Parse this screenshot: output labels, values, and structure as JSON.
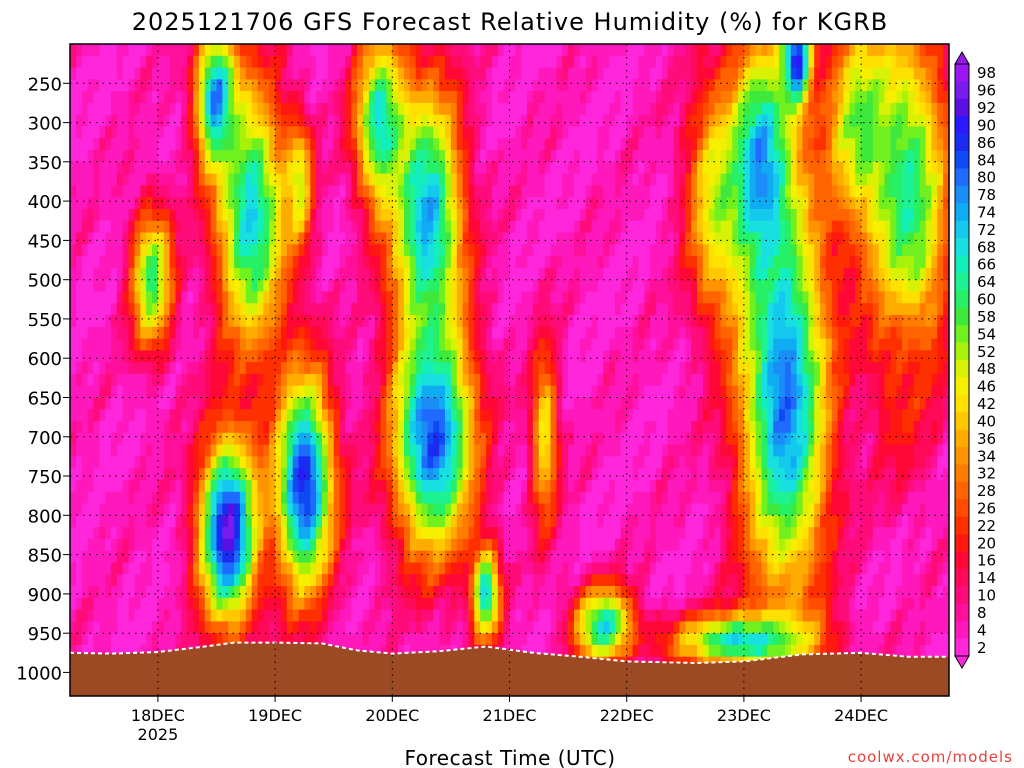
{
  "chart_data": {
    "type": "heatmap",
    "title": "2025121706 GFS Forecast Relative Humidity (%) for KGRB",
    "xlabel": "Forecast Time (UTC)",
    "ylabel": "",
    "credit": "coolwx.com/models",
    "x_ticks": [
      {
        "label": "18DEC",
        "sub": "2025",
        "day": 18.0
      },
      {
        "label": "19DEC",
        "sub": "",
        "day": 19.0
      },
      {
        "label": "20DEC",
        "sub": "",
        "day": 20.0
      },
      {
        "label": "21DEC",
        "sub": "",
        "day": 21.0
      },
      {
        "label": "22DEC",
        "sub": "",
        "day": 22.0
      },
      {
        "label": "23DEC",
        "sub": "",
        "day": 23.0
      },
      {
        "label": "24DEC",
        "sub": "",
        "day": 24.0
      }
    ],
    "xlim": [
      17.25,
      24.75
    ],
    "y_ticks": [
      250,
      300,
      350,
      400,
      450,
      500,
      550,
      600,
      650,
      700,
      750,
      800,
      850,
      900,
      950,
      1000
    ],
    "ylim": [
      200,
      1030
    ],
    "colorbar": {
      "labels": [
        98,
        96,
        92,
        90,
        86,
        84,
        80,
        78,
        74,
        72,
        68,
        66,
        64,
        60,
        58,
        54,
        52,
        48,
        46,
        42,
        40,
        36,
        34,
        32,
        28,
        26,
        22,
        20,
        16,
        14,
        10,
        8,
        4,
        2
      ],
      "colors": [
        "#9b17f2",
        "#7a1cf0",
        "#5a10e0",
        "#2a18ff",
        "#1b2bf2",
        "#0f48f5",
        "#1f6bff",
        "#1a8ef6",
        "#10acf3",
        "#14c8ee",
        "#18e0e0",
        "#12eebc",
        "#1ef292",
        "#26f066",
        "#3ee83c",
        "#70f01e",
        "#a8f20a",
        "#d8f206",
        "#f6f000",
        "#ffe000",
        "#ffc800",
        "#ffac00",
        "#ff9400",
        "#ff7c00",
        "#ff6400",
        "#ff4c00",
        "#ff3000",
        "#ff1810",
        "#ff0838",
        "#ff0a5a",
        "#ff0c7a",
        "#ff0f9a",
        "#ff18bc",
        "#ff26dc"
      ]
    },
    "surface_pressure": [
      {
        "day": 17.25,
        "hpa": 975
      },
      {
        "day": 17.6,
        "hpa": 976
      },
      {
        "day": 18.0,
        "hpa": 974
      },
      {
        "day": 18.4,
        "hpa": 967
      },
      {
        "day": 18.65,
        "hpa": 962
      },
      {
        "day": 19.0,
        "hpa": 962
      },
      {
        "day": 19.4,
        "hpa": 963
      },
      {
        "day": 19.7,
        "hpa": 972
      },
      {
        "day": 20.0,
        "hpa": 976
      },
      {
        "day": 20.4,
        "hpa": 973
      },
      {
        "day": 20.8,
        "hpa": 967
      },
      {
        "day": 21.2,
        "hpa": 975
      },
      {
        "day": 21.6,
        "hpa": 980
      },
      {
        "day": 22.0,
        "hpa": 986
      },
      {
        "day": 22.6,
        "hpa": 988
      },
      {
        "day": 23.0,
        "hpa": 986
      },
      {
        "day": 23.5,
        "hpa": 977
      },
      {
        "day": 24.0,
        "hpa": 975
      },
      {
        "day": 24.4,
        "hpa": 980
      },
      {
        "day": 24.75,
        "hpa": 980
      }
    ],
    "humidity_field": [
      {
        "day": 18.5,
        "hpa": 270,
        "sd": 0.18,
        "sp": 90,
        "rh": 82
      },
      {
        "day": 18.8,
        "hpa": 420,
        "sd": 0.3,
        "sp": 170,
        "rh": 72
      },
      {
        "day": 18.6,
        "hpa": 820,
        "sd": 0.25,
        "sp": 120,
        "rh": 96
      },
      {
        "day": 17.95,
        "hpa": 500,
        "sd": 0.18,
        "sp": 90,
        "rh": 62
      },
      {
        "day": 19.25,
        "hpa": 760,
        "sd": 0.25,
        "sp": 140,
        "rh": 90
      },
      {
        "day": 19.2,
        "hpa": 380,
        "sd": 0.12,
        "sp": 80,
        "rh": 52
      },
      {
        "day": 19.9,
        "hpa": 300,
        "sd": 0.22,
        "sp": 110,
        "rh": 70
      },
      {
        "day": 20.3,
        "hpa": 420,
        "sd": 0.3,
        "sp": 170,
        "rh": 76
      },
      {
        "day": 20.35,
        "hpa": 700,
        "sd": 0.35,
        "sp": 150,
        "rh": 86
      },
      {
        "day": 20.8,
        "hpa": 900,
        "sd": 0.12,
        "sp": 60,
        "rh": 72
      },
      {
        "day": 21.3,
        "hpa": 700,
        "sd": 0.12,
        "sp": 120,
        "rh": 46
      },
      {
        "day": 21.8,
        "hpa": 940,
        "sd": 0.25,
        "sp": 50,
        "rh": 70
      },
      {
        "day": 22.75,
        "hpa": 400,
        "sd": 0.25,
        "sp": 150,
        "rh": 48
      },
      {
        "day": 23.15,
        "hpa": 360,
        "sd": 0.28,
        "sp": 160,
        "rh": 80
      },
      {
        "day": 23.35,
        "hpa": 650,
        "sd": 0.38,
        "sp": 260,
        "rh": 82
      },
      {
        "day": 23.45,
        "hpa": 220,
        "sd": 0.12,
        "sp": 60,
        "rh": 94
      },
      {
        "day": 24.0,
        "hpa": 300,
        "sd": 0.3,
        "sp": 130,
        "rh": 58
      },
      {
        "day": 24.4,
        "hpa": 400,
        "sd": 0.35,
        "sp": 220,
        "rh": 66
      },
      {
        "day": 24.35,
        "hpa": 650,
        "sd": 0.22,
        "sp": 110,
        "rh": 22
      },
      {
        "day": 23.0,
        "hpa": 960,
        "sd": 0.6,
        "sp": 35,
        "rh": 72
      }
    ]
  }
}
